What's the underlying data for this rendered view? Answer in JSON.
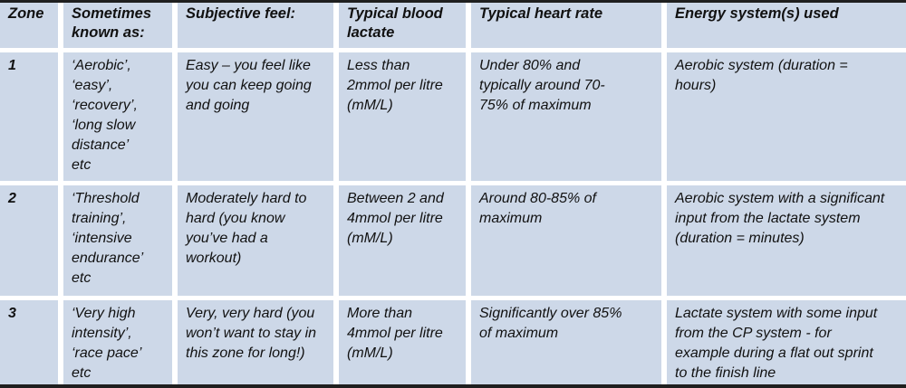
{
  "table": {
    "title": "training-zones-table",
    "header": [
      "Zone",
      "Sometimes\nknown as:",
      "Subjective feel:",
      "Typical blood\nlactate",
      "Typical heart rate",
      "Energy system(s) used"
    ],
    "rows": [
      {
        "zone": "1",
        "known_as": "‘Aerobic’,\n‘easy’,\n‘recovery’,\n‘long slow\ndistance’\netc",
        "subjective_feel": "Easy – you feel like\nyou can keep going\nand going",
        "blood_lactate": "Less than\n2mmol per litre\n(mM/L)",
        "heart_rate": "Under 80% and\ntypically around 70-\n75% of maximum",
        "energy_system": "Aerobic system (duration =\nhours)"
      },
      {
        "zone": "2",
        "known_as": "‘Threshold\ntraining’,\n‘intensive\nendurance’\netc",
        "subjective_feel": "Moderately hard to\nhard (you know\nyou’ve had a\nworkout)",
        "blood_lactate": "Between 2 and\n4mmol per litre\n(mM/L)",
        "heart_rate": "Around 80-85% of\nmaximum",
        "energy_system": "Aerobic system with a significant\ninput from the lactate system\n(duration = minutes)"
      },
      {
        "zone": "3",
        "known_as": "‘Very high\nintensity’,\n‘race pace’\netc",
        "subjective_feel": "Very, very hard (you\nwon’t want to stay in\nthis zone for long!)",
        "blood_lactate": "More than\n4mmol per litre\n(mM/L)",
        "heart_rate": "Significantly over 85%\nof maximum",
        "energy_system": "Lactate system with some input\nfrom the CP system - for\nexample during a flat out sprint\nto the finish line"
      }
    ]
  },
  "colors": {
    "cell_background": "#cdd8e8",
    "gutter": "#ffffff",
    "border": "#1f1f1f",
    "text": "#111111"
  }
}
